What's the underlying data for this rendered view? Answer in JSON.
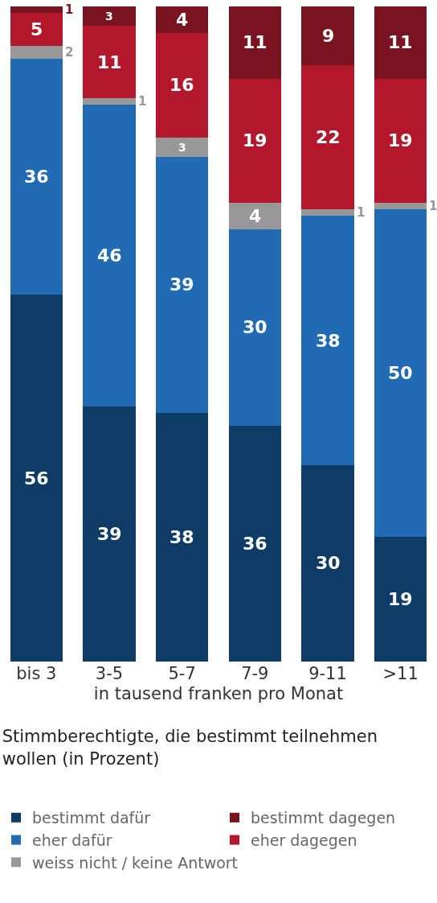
{
  "chart_data": {
    "type": "bar",
    "stacked": true,
    "data_labels": true,
    "legend": "bottom",
    "title": "Stimmberechtigte, die bestimmt teilnehmen wollen (in Prozent)",
    "xlabel": "in tausend franken pro Monat",
    "categories": [
      "bis 3",
      "3-5",
      "5-7",
      "7-9",
      "9-11",
      ">11"
    ],
    "series": [
      {
        "name": "bestimmt dafür",
        "color": "#0e3c66",
        "values": [
          56,
          39,
          38,
          36,
          30,
          19
        ]
      },
      {
        "name": "eher dafür",
        "color": "#206bb4",
        "values": [
          36,
          46,
          39,
          30,
          38,
          50
        ]
      },
      {
        "name": "weiss nicht / keine Antwort",
        "color": "#989898",
        "values": [
          2,
          1,
          3,
          4,
          1,
          1
        ]
      },
      {
        "name": "eher dagegen",
        "color": "#b3172c",
        "values": [
          5,
          11,
          16,
          19,
          22,
          19
        ]
      },
      {
        "name": "bestimmt dagegen",
        "color": "#79131f",
        "values": [
          1,
          3,
          4,
          11,
          9,
          11
        ]
      }
    ]
  }
}
